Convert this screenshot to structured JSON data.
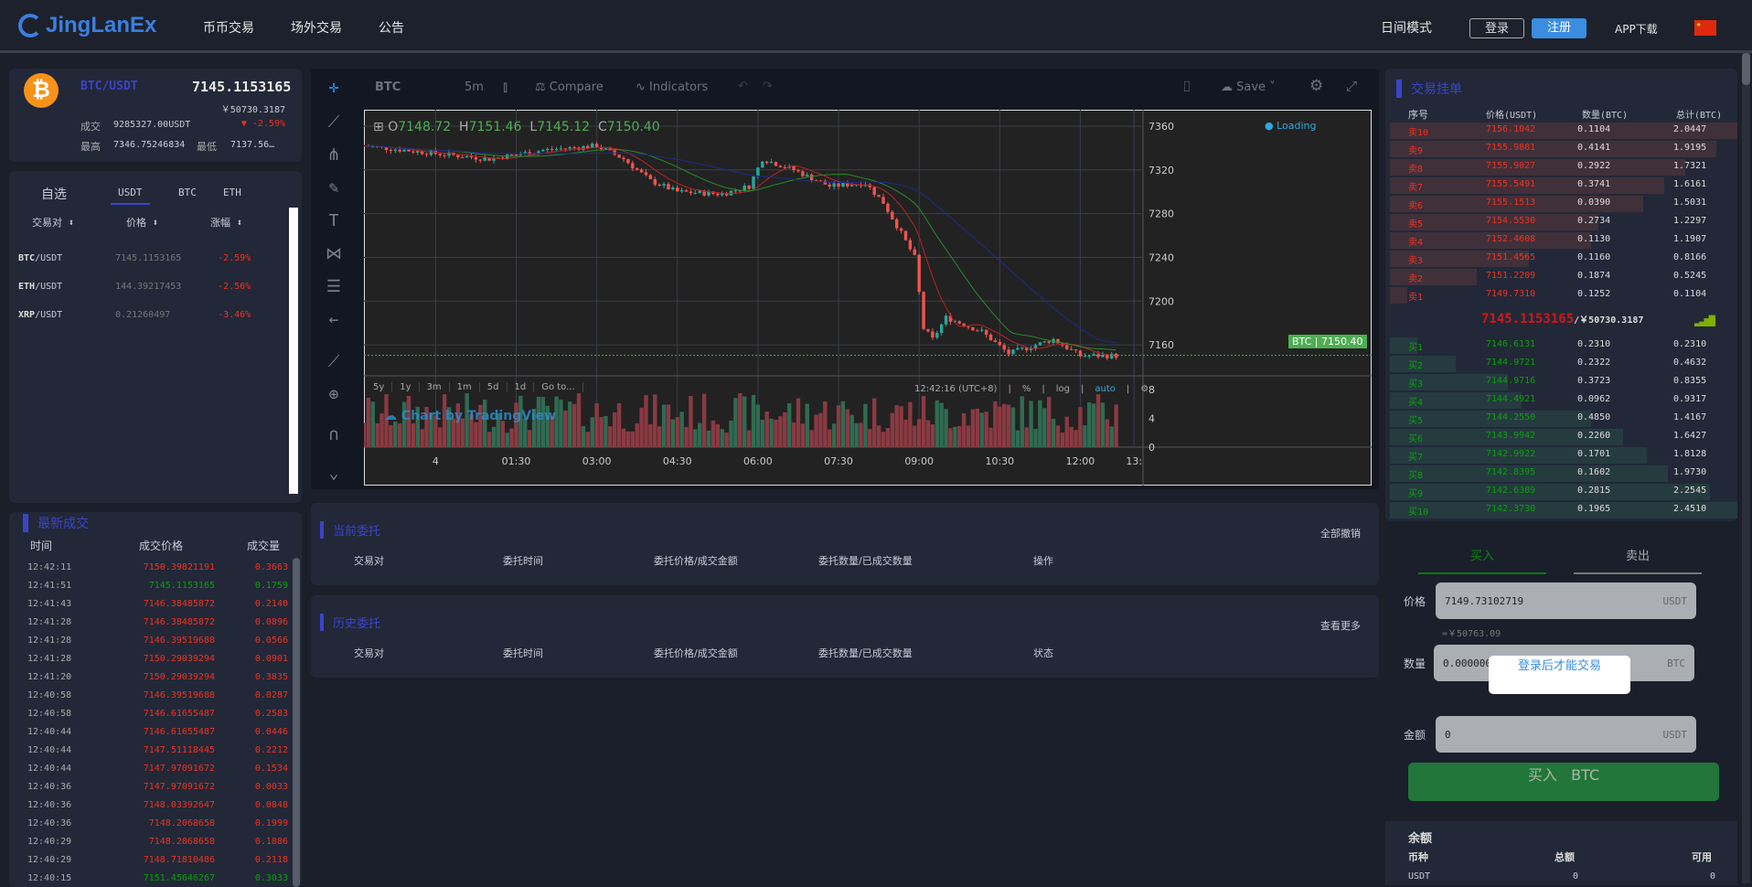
{
  "header": {
    "logo": "JingLanEx",
    "nav": [
      "币币交易",
      "场外交易",
      "公告"
    ],
    "day_mode": "日间模式",
    "login": "登录",
    "register": "注册",
    "app_download": "APP下载"
  },
  "ticker": {
    "pair": "BTC/USDT",
    "price": "7145.1153165",
    "cny": "￥50730.3187",
    "vol_label": "成交",
    "vol": "9285327.00USDT",
    "change": "-2.59%",
    "high_label": "最高",
    "high": "7346.75246834",
    "low_label": "最低",
    "low": "7137.56…"
  },
  "market": {
    "tabs": [
      "自选",
      "USDT",
      "BTC",
      "ETH"
    ],
    "active_tab": 1,
    "cols": [
      "交易对",
      "价格",
      "涨幅"
    ],
    "rows": [
      {
        "base": "BTC",
        "quote": "/USDT",
        "price": "7145.1153165",
        "change": "-2.59%"
      },
      {
        "base": "ETH",
        "quote": "/USDT",
        "price": "144.39217453",
        "change": "-2.56%"
      },
      {
        "base": "XRP",
        "quote": "/USDT",
        "price": "0.21260497",
        "change": "-3.46%"
      }
    ]
  },
  "trades": {
    "title": "最新成交",
    "cols": [
      "时间",
      "成交价格",
      "成交量"
    ],
    "rows": [
      [
        "12:42:11",
        "7150.39821191",
        "0.3663",
        "r"
      ],
      [
        "12:41:51",
        "7145.1153165",
        "0.1759",
        "g"
      ],
      [
        "12:41:43",
        "7146.38485872",
        "0.2140",
        "r"
      ],
      [
        "12:41:28",
        "7146.38485872",
        "0.0896",
        "r"
      ],
      [
        "12:41:28",
        "7146.39519688",
        "0.0566",
        "r"
      ],
      [
        "12:41:28",
        "7150.29039294",
        "0.0901",
        "r"
      ],
      [
        "12:41:20",
        "7150.29039294",
        "0.3835",
        "r"
      ],
      [
        "12:40:58",
        "7146.39519688",
        "0.0287",
        "r"
      ],
      [
        "12:40:58",
        "7146.61655487",
        "0.2583",
        "r"
      ],
      [
        "12:40:44",
        "7146.61655487",
        "0.0446",
        "r"
      ],
      [
        "12:40:44",
        "7147.51118445",
        "0.2212",
        "r"
      ],
      [
        "12:40:44",
        "7147.97091672",
        "0.1534",
        "r"
      ],
      [
        "12:40:36",
        "7147.97091672",
        "0.0033",
        "r"
      ],
      [
        "12:40:36",
        "7148.03392647",
        "0.0848",
        "r"
      ],
      [
        "12:40:36",
        "7148.2068658",
        "0.1999",
        "r"
      ],
      [
        "12:40:29",
        "7148.2068658",
        "0.1886",
        "r"
      ],
      [
        "12:40:29",
        "7148.71810486",
        "0.2118",
        "r"
      ],
      [
        "12:40:15",
        "7151.45646267",
        "0.3033",
        "g"
      ]
    ]
  },
  "chart": {
    "symbol": "BTC",
    "interval": "5m",
    "compare": "Compare",
    "indicators": "Indicators",
    "save": "Save",
    "loading": "Loading",
    "ohlc": {
      "o_label": "O",
      "o": "7148.72",
      "h_label": "H",
      "h": "7151.46",
      "l_label": "L",
      "l": "7145.12",
      "c_label": "C",
      "c": "7150.40"
    },
    "price_tag_symbol": "BTC",
    "price_tag": "7150.40",
    "watermark": "Chart by TradingView",
    "ranges": [
      "5y",
      "1y",
      "3m",
      "1m",
      "5d",
      "1d",
      "Go to..."
    ],
    "clock": "12:42:16 (UTC+8)",
    "opts": [
      "%",
      "log",
      "auto"
    ]
  },
  "chart_data": {
    "type": "candlestick",
    "x_unit": "minutes from 00:00",
    "x_ticks": [
      {
        "label": "4",
        "v": 0
      },
      {
        "label": "01:30",
        "v": 90
      },
      {
        "label": "03:00",
        "v": 180
      },
      {
        "label": "04:30",
        "v": 270
      },
      {
        "label": "06:00",
        "v": 360
      },
      {
        "label": "07:30",
        "v": 450
      },
      {
        "label": "09:00",
        "v": 540
      },
      {
        "label": "10:30",
        "v": 630
      },
      {
        "label": "12:00",
        "v": 720
      },
      {
        "label": "13:",
        "v": 780
      }
    ],
    "y_ticks": [
      7360,
      7320,
      7280,
      7240,
      7200,
      7160
    ],
    "ylim": [
      7135,
      7375
    ],
    "volume_ticks": [
      8,
      4,
      0
    ],
    "volume_max": 10,
    "close_path": [
      [
        -80,
        7342
      ],
      [
        0,
        7335
      ],
      [
        60,
        7330
      ],
      [
        120,
        7338
      ],
      [
        180,
        7342
      ],
      [
        210,
        7330
      ],
      [
        240,
        7310
      ],
      [
        270,
        7300
      ],
      [
        320,
        7298
      ],
      [
        350,
        7305
      ],
      [
        365,
        7330
      ],
      [
        400,
        7320
      ],
      [
        440,
        7305
      ],
      [
        480,
        7308
      ],
      [
        500,
        7290
      ],
      [
        520,
        7262
      ],
      [
        535,
        7240
      ],
      [
        545,
        7175
      ],
      [
        555,
        7165
      ],
      [
        570,
        7185
      ],
      [
        610,
        7172
      ],
      [
        640,
        7152
      ],
      [
        690,
        7165
      ],
      [
        720,
        7150
      ],
      [
        760,
        7150
      ]
    ],
    "last": 7150.4
  },
  "orders": {
    "current_title": "当前委托",
    "cancel_all": "全部撤销",
    "history_title": "历史委托",
    "more": "查看更多",
    "cols_current": [
      "交易对",
      "委托时间",
      "委托价格/成交金额",
      "委托数量/已成交数量",
      "操作"
    ],
    "cols_history": [
      "交易对",
      "委托时间",
      "委托价格/成交金额",
      "委托数量/已成交数量",
      "状态"
    ]
  },
  "book": {
    "title": "交易挂单",
    "cols": [
      "序号",
      "价格(USDT)",
      "数量(BTC)",
      "总计(BTC)"
    ],
    "asks": [
      [
        "卖10",
        "7156.1042",
        "0.1104",
        "2.0447",
        1.0
      ],
      [
        "卖9",
        "7155.9881",
        "0.4141",
        "1.9195",
        0.94
      ],
      [
        "卖8",
        "7155.9027",
        "0.2922",
        "1.7321",
        0.85
      ],
      [
        "卖7",
        "7155.5491",
        "0.3741",
        "1.6161",
        0.79
      ],
      [
        "卖6",
        "7155.1513",
        "0.0390",
        "1.5031",
        0.73
      ],
      [
        "卖5",
        "7154.5530",
        "0.2734",
        "1.2297",
        0.6
      ],
      [
        "卖4",
        "7152.4608",
        "0.1130",
        "1.1907",
        0.58
      ],
      [
        "卖3",
        "7151.4565",
        "0.1160",
        "0.8166",
        0.4
      ],
      [
        "卖2",
        "7151.2209",
        "0.1874",
        "0.5245",
        0.25
      ],
      [
        "卖1",
        "7149.7310",
        "0.1252",
        "0.1104",
        0.05
      ]
    ],
    "last_price": "7145.1153165",
    "last_cny": "/￥50730.3187",
    "bids": [
      [
        "买1",
        "7146.6131",
        "0.2310",
        "0.2310",
        0.08
      ],
      [
        "买2",
        "7144.9721",
        "0.2322",
        "0.4632",
        0.19
      ],
      [
        "买3",
        "7144.9716",
        "0.3723",
        "0.8355",
        0.34
      ],
      [
        "买4",
        "7144.4921",
        "0.0962",
        "0.9317",
        0.38
      ],
      [
        "买5",
        "7144.2550",
        "0.4850",
        "1.4167",
        0.58
      ],
      [
        "买6",
        "7143.9942",
        "0.2260",
        "1.6427",
        0.67
      ],
      [
        "买7",
        "7142.9922",
        "0.1701",
        "1.8128",
        0.74
      ],
      [
        "买8",
        "7142.8395",
        "0.1602",
        "1.9730",
        0.8
      ],
      [
        "买9",
        "7142.6389",
        "0.2815",
        "2.2545",
        0.92
      ],
      [
        "买10",
        "7142.3730",
        "0.1965",
        "2.4510",
        1.0
      ]
    ]
  },
  "trade_form": {
    "buy_tab": "买入",
    "sell_tab": "卖出",
    "price_label": "价格",
    "price": "7149.73102719",
    "price_unit": "USDT",
    "approx": "≈￥50763.09",
    "qty_label": "数量",
    "qty": "0.0000000",
    "qty_unit": "BTC",
    "amount_label": "金额",
    "amount": "0",
    "amount_unit": "USDT",
    "toast": "登录后才能交易",
    "buy_btn": "买入",
    "buy_btn_sym": "BTC"
  },
  "balance": {
    "title": "余额",
    "cols": [
      "币种",
      "总额",
      "可用"
    ],
    "rows": [
      [
        "USDT",
        "0",
        "0"
      ]
    ]
  },
  "colors": {
    "accent": "#3b44c8",
    "up": "#26a69a",
    "down": "#ef5350",
    "red": "#f0311e",
    "green": "#0aa00a"
  }
}
